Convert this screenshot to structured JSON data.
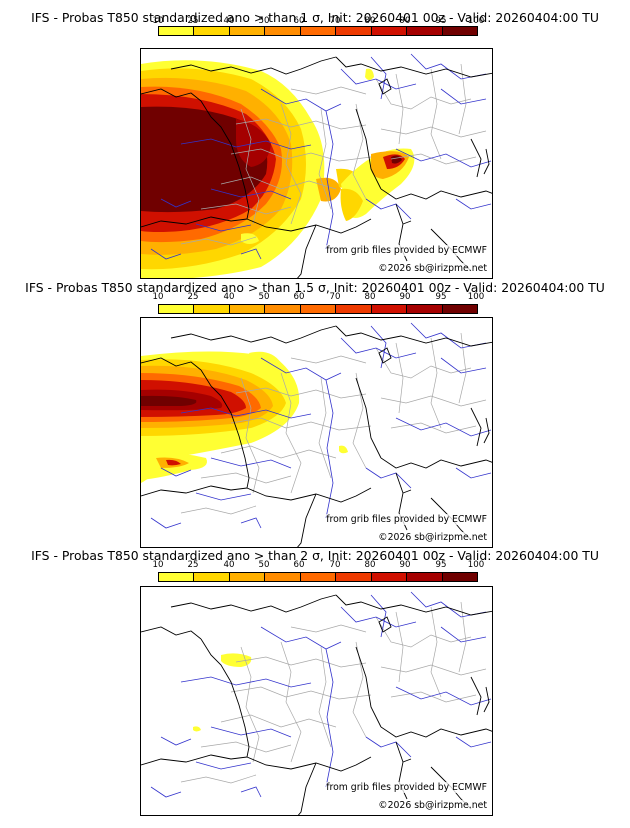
{
  "panels": [
    {
      "title": "IFS - Probas T850  standardized ano > than 1 σ, Init: 20260401 00z - Valid: 20260404:00 TU",
      "threshold_sigma": 1
    },
    {
      "title": "IFS - Probas T850  standardized ano > than 1.5 σ, Init: 20260401 00z - Valid: 20260404:00 TU",
      "threshold_sigma": 1.5
    },
    {
      "title": "IFS - Probas T850  standardized ano > than 2 σ, Init: 20260401 00z - Valid: 20260404:00 TU",
      "threshold_sigma": 2
    }
  ],
  "scale": {
    "labels": [
      "10",
      "25",
      "40",
      "50",
      "60",
      "70",
      "80",
      "90",
      "95",
      "100"
    ],
    "colors": [
      "#ffff33",
      "#ffd700",
      "#ffb000",
      "#ff8c00",
      "#ff6a00",
      "#ee3a00",
      "#d01000",
      "#a50000",
      "#700000"
    ]
  },
  "credits": {
    "source": "from grib files provided by ECMWF",
    "copyright": "©2026 sb@irizpme.net"
  }
}
